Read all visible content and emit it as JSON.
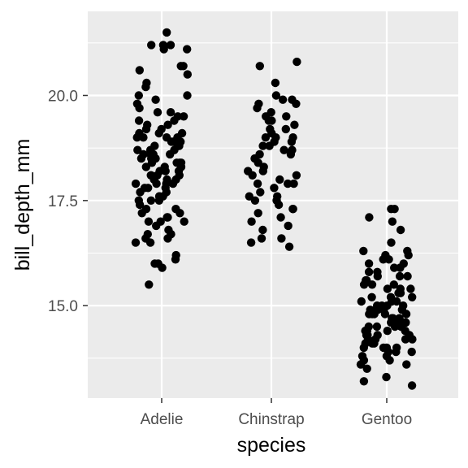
{
  "chart_data": {
    "type": "scatter",
    "xlabel": "species",
    "ylabel": "bill_depth_mm",
    "categories": [
      "Adelie",
      "Chinstrap",
      "Gentoo"
    ],
    "ylim": [
      12.8,
      22.0
    ],
    "y_ticks": [
      15.0,
      17.5,
      20.0
    ],
    "y_tick_labels": [
      "15.0",
      "17.5",
      "20.0"
    ],
    "grid": true,
    "jitter": true,
    "colors": {
      "panel": "#ebebeb",
      "grid": "#ffffff",
      "point": "#000000"
    },
    "series": [
      {
        "category": "Adelie",
        "values": [
          21.5,
          21.2,
          21.1,
          21.1,
          21.2,
          21.2,
          20.7,
          20.7,
          20.6,
          20.5,
          20.3,
          20.2,
          20.0,
          20.0,
          19.9,
          19.8,
          19.7,
          19.6,
          19.5,
          19.5,
          19.4,
          19.4,
          19.3,
          19.2,
          19.2,
          19.1,
          19.1,
          19.0,
          19.0,
          19.0,
          18.9,
          18.9,
          18.9,
          18.8,
          18.8,
          18.7,
          18.7,
          18.6,
          18.6,
          18.6,
          18.5,
          18.5,
          18.4,
          18.4,
          18.4,
          18.3,
          18.3,
          18.2,
          18.2,
          18.1,
          18.1,
          18.1,
          18.0,
          18.0,
          17.9,
          17.9,
          17.9,
          17.8,
          17.8,
          17.7,
          17.7,
          17.6,
          17.6,
          17.5,
          17.5,
          17.4,
          17.3,
          17.3,
          17.2,
          17.2,
          17.1,
          17.1,
          17.0,
          17.0,
          17.0,
          16.9,
          16.8,
          16.7,
          16.7,
          16.6,
          16.6,
          16.5,
          16.5,
          16.2,
          16.1,
          16.0,
          16.0,
          15.9,
          15.5,
          18.1,
          18.4,
          18.7,
          19.0,
          17.5,
          18.3,
          18.9,
          19.1,
          17.8,
          18.2,
          18.6,
          19.3,
          17.6,
          18.0,
          18.8,
          17.9,
          19.6,
          18.5
        ]
      },
      {
        "category": "Chinstrap",
        "values": [
          20.8,
          20.7,
          20.3,
          20.0,
          19.9,
          19.9,
          19.8,
          19.8,
          19.7,
          19.6,
          19.5,
          19.5,
          19.4,
          19.3,
          19.2,
          19.1,
          19.0,
          19.0,
          19.0,
          18.9,
          18.8,
          18.8,
          18.7,
          18.7,
          18.6,
          18.5,
          18.4,
          18.2,
          18.2,
          18.1,
          18.0,
          17.9,
          17.9,
          17.8,
          17.7,
          17.5,
          17.5,
          17.4,
          17.3,
          17.3,
          17.2,
          17.1,
          17.0,
          16.9,
          16.8,
          16.6,
          16.6,
          16.5,
          16.4,
          18.3,
          18.6,
          17.6,
          19.2,
          18.9,
          17.9,
          19.4,
          18.1,
          17.6
        ]
      },
      {
        "category": "Gentoo",
        "values": [
          17.3,
          17.3,
          17.1,
          17.0,
          16.8,
          16.5,
          16.3,
          16.3,
          16.2,
          16.1,
          16.0,
          15.9,
          15.8,
          15.7,
          15.7,
          15.6,
          15.5,
          15.5,
          15.4,
          15.3,
          15.2,
          15.1,
          15.0,
          15.0,
          14.9,
          14.9,
          14.8,
          14.8,
          14.7,
          14.6,
          14.5,
          14.5,
          14.4,
          14.4,
          14.3,
          14.2,
          14.2,
          14.1,
          14.1,
          14.0,
          14.0,
          13.9,
          13.8,
          13.7,
          13.6,
          13.5,
          13.3,
          13.2,
          13.1,
          15.0,
          14.5,
          15.2,
          14.3,
          14.8,
          15.4,
          13.9,
          14.6,
          15.1,
          16.0,
          14.2,
          14.9,
          15.7,
          13.8,
          14.4,
          15.3,
          14.7,
          14.0,
          15.6,
          15.8,
          14.1,
          14.8,
          15.5,
          13.7,
          14.6,
          16.1,
          14.2,
          15.0,
          14.3,
          15.9,
          14.4,
          13.9,
          14.5,
          15.2,
          14.7,
          15.1,
          13.6,
          14.9,
          16.2,
          14.0,
          14.8,
          15.4,
          14.3,
          14.6
        ]
      }
    ]
  }
}
